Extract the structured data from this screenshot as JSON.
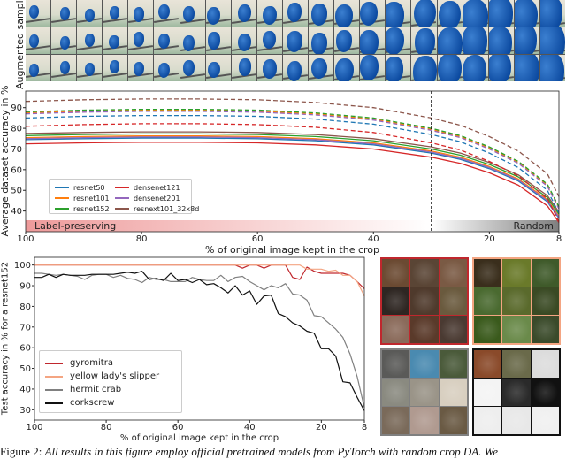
{
  "strip": {
    "ylabel": "Augmented samples",
    "rows": 3,
    "columns": 21
  },
  "chart_data": [
    {
      "type": "line",
      "xlabel": "% of original image kept in the crop",
      "ylabel": "Average dataset accuracy in %",
      "xlim": [
        100,
        8
      ],
      "ylim": [
        30,
        98
      ],
      "x_reversed": true,
      "xticks": [
        100,
        80,
        60,
        40,
        20,
        8
      ],
      "yticks": [
        40,
        50,
        60,
        70,
        80,
        90
      ],
      "grid": false,
      "legend_placement": "lower-left",
      "vline": {
        "x": 30,
        "style": "dashed",
        "color": "#000000"
      },
      "bands": [
        {
          "label": "Label-preserving",
          "from": 100,
          "to": 30,
          "color": "#ee9a9a"
        },
        {
          "label": "Random",
          "from": 30,
          "to": 8,
          "color": "#7f7f7f"
        }
      ],
      "x": [
        100,
        90,
        80,
        70,
        60,
        50,
        40,
        30,
        25,
        20,
        15,
        10,
        8
      ],
      "legend": [
        {
          "name": "resnet50",
          "color": "#1f77b4"
        },
        {
          "name": "resnet101",
          "color": "#ff7f0e"
        },
        {
          "name": "resnet152",
          "color": "#2ca02c"
        },
        {
          "name": "densenet121",
          "color": "#d62728"
        },
        {
          "name": "densenet201",
          "color": "#9467bd"
        },
        {
          "name": "resnext101_32x8d",
          "color": "#8c564b"
        }
      ],
      "series": [
        {
          "name": "resnet50",
          "style": "solid",
          "color": "#1f77b4",
          "values": [
            74.5,
            75,
            75.3,
            75.3,
            75,
            74,
            72,
            68,
            65,
            60.5,
            54.5,
            44.5,
            36.5
          ]
        },
        {
          "name": "resnet101",
          "style": "solid",
          "color": "#ff7f0e",
          "values": [
            75.5,
            76,
            76.3,
            76.3,
            76,
            75,
            73,
            69,
            66,
            61.5,
            55.5,
            45.5,
            37.5
          ]
        },
        {
          "name": "resnet152",
          "style": "solid",
          "color": "#2ca02c",
          "values": [
            76.5,
            77,
            77.3,
            77.3,
            77,
            76,
            74,
            70,
            67,
            62.5,
            56.5,
            46.5,
            38.5
          ]
        },
        {
          "name": "densenet121",
          "style": "solid",
          "color": "#d62728",
          "values": [
            72.5,
            73,
            73.3,
            73.3,
            73,
            72,
            70,
            66,
            63,
            58.5,
            52.5,
            42.5,
            34.5
          ]
        },
        {
          "name": "densenet201",
          "style": "solid",
          "color": "#9467bd",
          "values": [
            75,
            75.5,
            75.8,
            75.8,
            75.5,
            74.5,
            72.5,
            68.5,
            65.5,
            61,
            55,
            45,
            37
          ]
        },
        {
          "name": "resnext101_32x8d",
          "style": "solid",
          "color": "#8c564b",
          "values": [
            77.5,
            78,
            78.3,
            78.3,
            78,
            77,
            75,
            71,
            68,
            63.5,
            57.5,
            47.5,
            39.5
          ]
        },
        {
          "name": "resnet50",
          "style": "dashed",
          "color": "#1f77b4",
          "values": [
            85,
            85.8,
            86.2,
            86.2,
            85.8,
            84.5,
            82,
            77,
            73.5,
            68,
            61,
            50,
            39
          ]
        },
        {
          "name": "resnet101",
          "style": "dashed",
          "color": "#ff7f0e",
          "values": [
            87.5,
            88.3,
            88.7,
            88.7,
            88.3,
            87,
            84.5,
            79.5,
            76,
            70.5,
            63.5,
            52.5,
            41.5
          ]
        },
        {
          "name": "resnet152",
          "style": "dashed",
          "color": "#2ca02c",
          "values": [
            88,
            88.8,
            89.2,
            89.2,
            88.8,
            87.5,
            85,
            80,
            76.5,
            71,
            64,
            53,
            42
          ]
        },
        {
          "name": "densenet121",
          "style": "dashed",
          "color": "#d62728",
          "values": [
            81,
            81.8,
            82.2,
            82.2,
            81.8,
            80.5,
            78,
            73,
            69.5,
            64,
            57,
            46,
            35
          ]
        },
        {
          "name": "densenet201",
          "style": "dashed",
          "color": "#9467bd",
          "values": [
            87,
            87.8,
            88.2,
            88.2,
            87.8,
            86.5,
            84,
            79,
            75.5,
            70,
            63,
            52,
            41
          ]
        },
        {
          "name": "resnext101_32x8d",
          "style": "dashed",
          "color": "#8c564b",
          "values": [
            93,
            93.8,
            94.2,
            94.2,
            93.8,
            92.5,
            90,
            85,
            81.5,
            76,
            69,
            58,
            47
          ]
        }
      ]
    },
    {
      "type": "line",
      "xlabel": "% of original image kept in the crop",
      "ylabel": "Test accuracy in % for a resnet152",
      "xlim": [
        100,
        8
      ],
      "ylim": [
        25,
        103.7
      ],
      "x_reversed": true,
      "xticks": [
        100,
        80,
        60,
        40,
        20,
        8
      ],
      "yticks": [
        30,
        40,
        50,
        60,
        70,
        80,
        90,
        100
      ],
      "grid": false,
      "legend_placement": "lower-left",
      "x": [
        100,
        98,
        96,
        94,
        92,
        90,
        88,
        86,
        84,
        82,
        80,
        78,
        76,
        74,
        72,
        70,
        68,
        66,
        64,
        62,
        60,
        58,
        56,
        54,
        52,
        50,
        48,
        46,
        44,
        42,
        40,
        38,
        36,
        34,
        32,
        30,
        28,
        26,
        24,
        22,
        20,
        18,
        16,
        14,
        12,
        10,
        8
      ],
      "series": [
        {
          "name": "gyromitra",
          "color": "#c0272d",
          "values": [
            100,
            100,
            100,
            100,
            100,
            100,
            100,
            100,
            100,
            100,
            100,
            100,
            100,
            100,
            100,
            100,
            100,
            100,
            100,
            100,
            100,
            100,
            100,
            100,
            100,
            100,
            100,
            100,
            100,
            98.5,
            100,
            100,
            98.5,
            100,
            100,
            100,
            94,
            93,
            99,
            97,
            96,
            96,
            96,
            96,
            95,
            92,
            88.5
          ]
        },
        {
          "name": "yellow lady's slipper",
          "color": "#f4a582",
          "values": [
            100,
            100,
            100,
            100,
            100,
            100,
            100,
            100,
            100,
            100,
            100,
            100,
            100,
            100,
            100,
            100,
            100,
            100,
            100,
            100,
            100,
            100,
            100,
            100,
            100,
            100,
            100,
            100,
            100,
            100,
            100,
            100,
            100,
            100,
            100,
            100,
            100,
            100,
            98,
            98,
            98,
            97,
            97.5,
            95,
            95,
            92,
            85
          ]
        },
        {
          "name": "hermit crab",
          "color": "#808080",
          "values": [
            96,
            96,
            95.5,
            95,
            95.5,
            95,
            94.5,
            93,
            95,
            95.5,
            95.5,
            94,
            95,
            93.5,
            93,
            91.5,
            94,
            93,
            93,
            92,
            92,
            92,
            94,
            93,
            92.5,
            92.5,
            95,
            92,
            94,
            94.5,
            92,
            90,
            88,
            90,
            89,
            91,
            86,
            85.5,
            83,
            75.5,
            75,
            72,
            69,
            65,
            57,
            46,
            31
          ]
        },
        {
          "name": "corkscrew",
          "color": "#111111",
          "values": [
            94,
            94,
            95.5,
            94,
            95.5,
            95,
            95,
            95,
            95.5,
            95.5,
            95.5,
            95.5,
            96,
            96.5,
            96,
            97,
            93,
            93.5,
            92.5,
            96,
            92.5,
            93,
            91.5,
            93,
            90.5,
            91,
            89,
            86.5,
            90,
            85.5,
            87.5,
            81,
            85,
            85.5,
            76.5,
            75,
            72,
            70.5,
            68,
            67,
            59.5,
            59.5,
            56,
            43.5,
            43,
            36,
            29.5
          ]
        }
      ]
    }
  ],
  "image_grids": [
    {
      "class": "gyromitra",
      "border": "#c0272d",
      "tiles": [
        "#6b4a32",
        "#5a4535",
        "#7a5a44",
        "#2e2622",
        "#4f3a2c",
        "#6a5a3e",
        "#8a6a5a",
        "#5a3a2a",
        "#4a3a32"
      ]
    },
    {
      "class": "yellow lady's slipper",
      "border": "#f4a582",
      "tiles": [
        "#3a2e1c",
        "#6a7a2a",
        "#3f5a2a",
        "#4a6a30",
        "#5a6a2c",
        "#3a4a24",
        "#3a5a1c",
        "#6a8a4a",
        "#3a4a2a"
      ]
    },
    {
      "class": "hermit crab",
      "border": "#808080",
      "tiles": [
        "#5a5a58",
        "#4a8ab0",
        "#4a5a3a",
        "#8a8a80",
        "#9a9488",
        "#d8cfc0",
        "#7a6a5a",
        "#b09a90",
        "#6a5a44"
      ]
    },
    {
      "class": "corkscrew",
      "border": "#111111",
      "tiles": [
        "#8a4a2a",
        "#6a6a4a",
        "#dcdcdc",
        "#f4f4f4",
        "#2a2a2a",
        "#111111",
        "#eeeeee",
        "#e8e8e8",
        "#f0f0f0"
      ]
    }
  ],
  "caption": {
    "label": "Figure 2:",
    "text": "All results in this figure employ official pretrained models from PyTorch with random crop DA. We"
  }
}
